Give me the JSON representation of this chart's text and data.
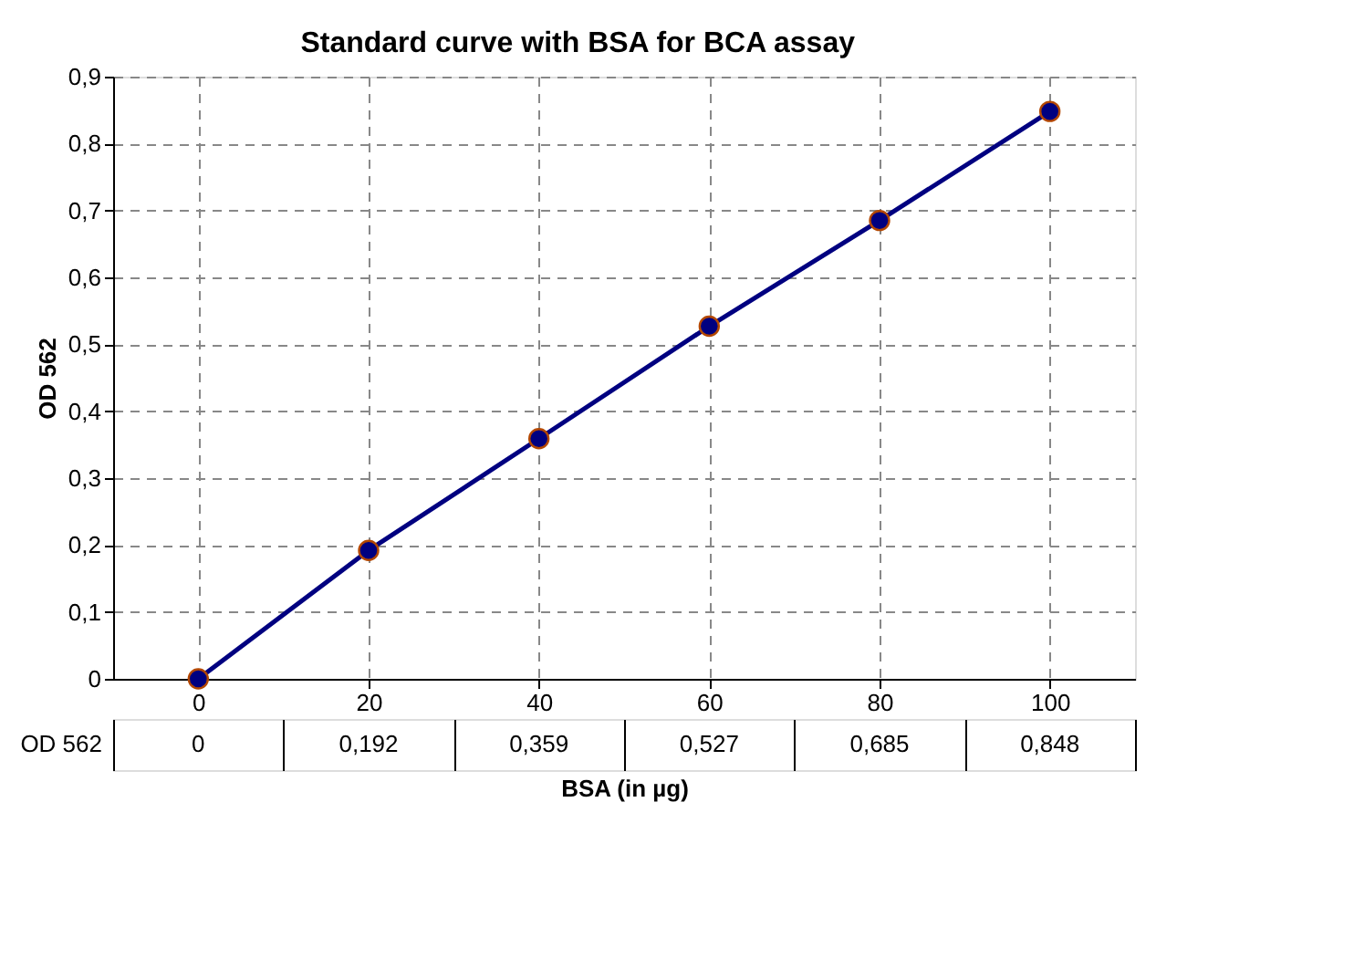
{
  "chart_data": {
    "type": "line",
    "title": "Standard curve with BSA for BCA assay",
    "xlabel": "BSA (in µg)",
    "ylabel": "OD 562",
    "categories": [
      "0",
      "20",
      "40",
      "60",
      "80",
      "100"
    ],
    "series": [
      {
        "name": "OD 562",
        "color": "#000080",
        "values": [
          0,
          0.192,
          0.359,
          0.527,
          0.685,
          0.848
        ],
        "value_labels": [
          "0",
          "0,192",
          "0,359",
          "0,527",
          "0,685",
          "0,848"
        ]
      }
    ],
    "ylim": [
      0,
      0.9
    ],
    "yticks": [
      0,
      {
        "value": 0.1,
        "label": "0,1"
      },
      {
        "value": 0.2,
        "label": "0,2"
      },
      {
        "value": 0.3,
        "label": "0,3"
      },
      {
        "value": 0.4,
        "label": "0,4"
      },
      {
        "value": 0.5,
        "label": "0,5"
      },
      {
        "value": 0.6,
        "label": "0,6"
      },
      {
        "value": 0.7,
        "label": "0,7"
      },
      {
        "value": 0.8,
        "label": "0,8"
      },
      {
        "value": 0.9,
        "label": "0,9"
      }
    ],
    "grid": true,
    "marker": "circle",
    "line_style": "solid"
  }
}
